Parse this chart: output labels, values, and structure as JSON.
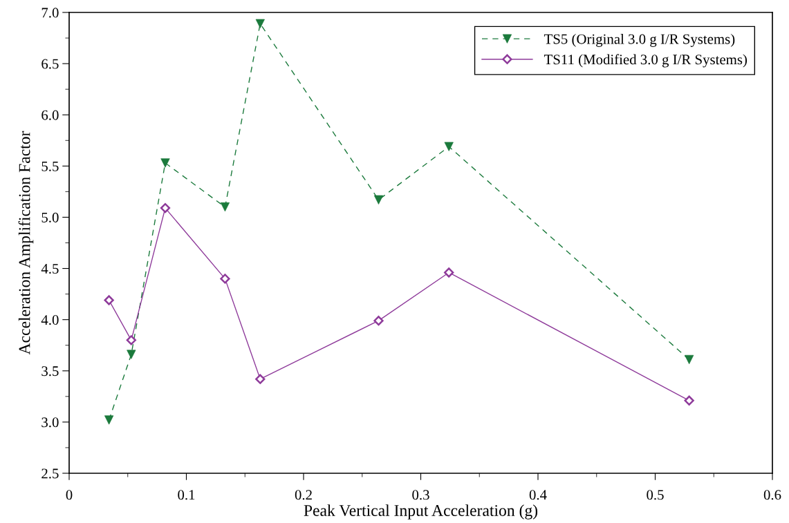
{
  "chart_data": {
    "type": "line",
    "xlabel": "Peak Vertical Input Acceleration (g)",
    "ylabel": "Acceleration Amplification Factor",
    "series": [
      {
        "name": "TS5 (Original 3.0 g I/R Systems)",
        "color": "#1b7a3c",
        "marker": "triangle",
        "line_style": "dashed",
        "x": [
          0.034,
          0.053,
          0.082,
          0.133,
          0.163,
          0.264,
          0.324,
          0.529
        ],
        "values": [
          3.02,
          3.66,
          5.53,
          5.1,
          6.89,
          5.17,
          5.69,
          3.61
        ]
      },
      {
        "name": "TS11 (Modified 3.0 g I/R Systems)",
        "color": "#8e3a9a",
        "marker": "diamond",
        "line_style": "solid",
        "x": [
          0.034,
          0.053,
          0.082,
          0.133,
          0.163,
          0.264,
          0.324,
          0.529
        ],
        "values": [
          4.19,
          3.8,
          5.09,
          4.4,
          3.42,
          3.99,
          4.46,
          3.21
        ]
      }
    ],
    "xlim": [
      0,
      0.6
    ],
    "xticks": [
      0,
      0.1,
      0.2,
      0.3,
      0.4,
      0.5,
      0.6
    ],
    "ylim": [
      2.5,
      7.0
    ],
    "yticks": [
      {
        "value": 2.5,
        "label": "2.5"
      },
      {
        "value": 3.0,
        "label": "3.0"
      },
      {
        "value": 3.5,
        "label": "3.5"
      },
      {
        "value": 4.0,
        "label": "4.0"
      },
      {
        "value": 4.5,
        "label": "4.5"
      },
      {
        "value": 5.0,
        "label": "5.0"
      },
      {
        "value": 5.5,
        "label": "5.5"
      },
      {
        "value": 6.0,
        "label": "6.0"
      },
      {
        "value": 6.5,
        "label": "6.5"
      },
      {
        "value": 7.0,
        "label": "7.0"
      }
    ],
    "grid": false,
    "legend": "top right"
  }
}
